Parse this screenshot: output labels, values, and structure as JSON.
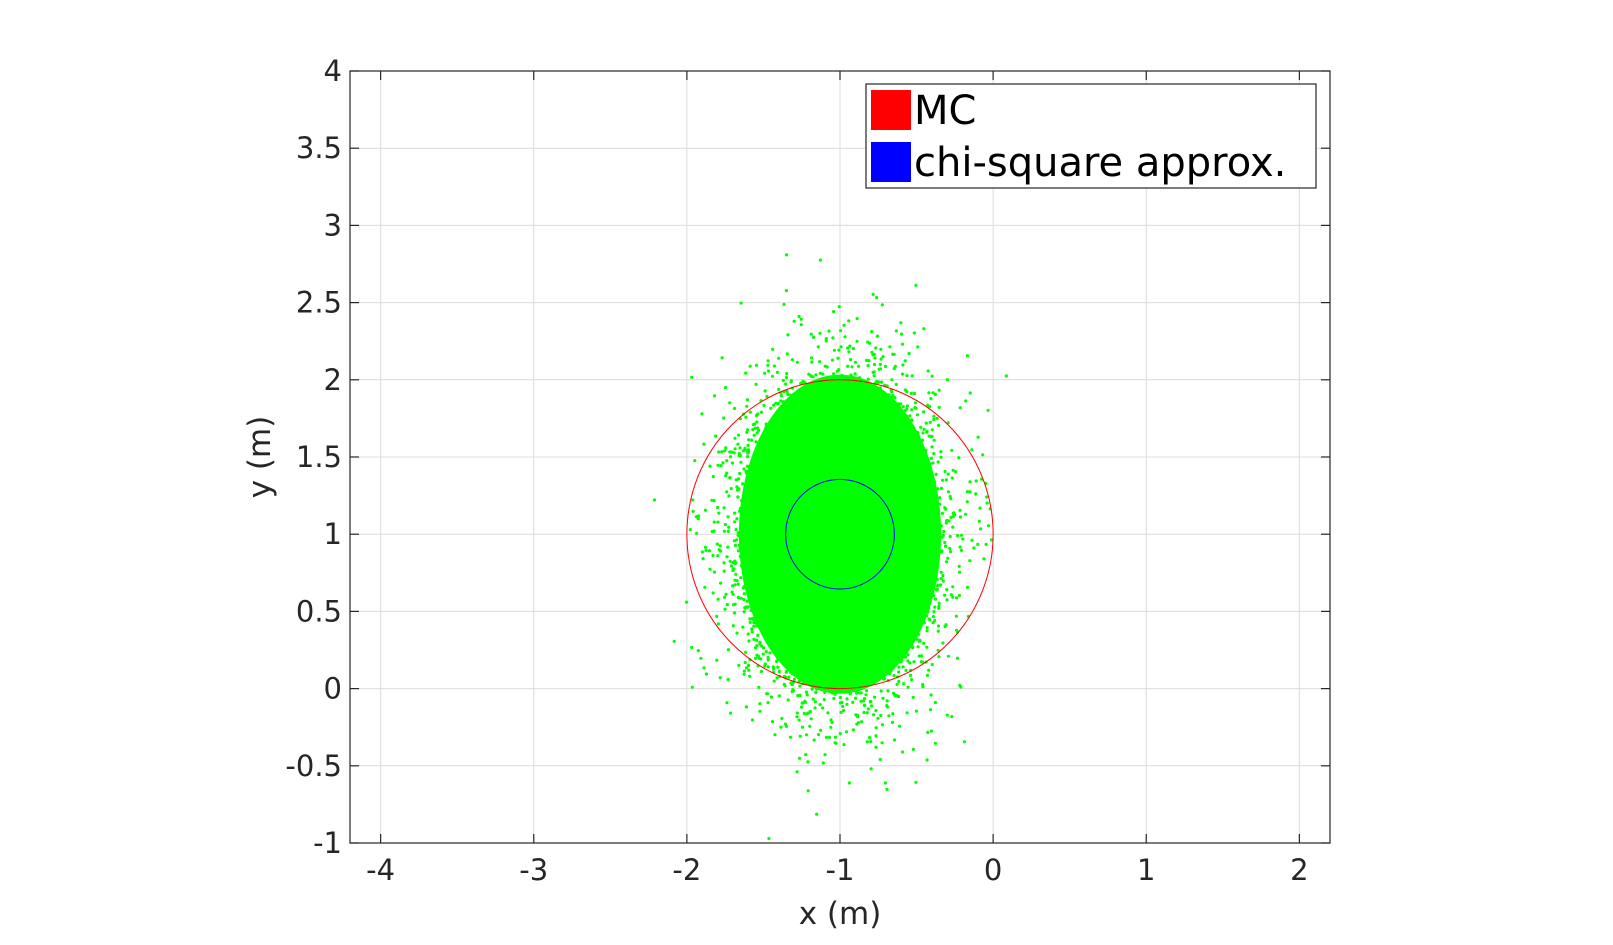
{
  "chart_data": {
    "type": "scatter",
    "title": "",
    "xlabel": "x (m)",
    "ylabel": "y (m)",
    "xlim": [
      -4.2,
      2.2
    ],
    "ylim": [
      -1,
      4
    ],
    "xticks": [
      -4,
      -3,
      -2,
      -1,
      0,
      1,
      2
    ],
    "yticks": [
      -1,
      -0.5,
      0,
      0.5,
      1,
      1.5,
      2,
      2.5,
      3,
      3.5,
      4
    ],
    "grid": true,
    "legend_position": "top-right",
    "legend": [
      {
        "label": "MC",
        "color": "#ff0000"
      },
      {
        "label": "chi-square approx.",
        "color": "#0000ff"
      }
    ],
    "point_cloud": {
      "color": "#00ff00",
      "center": [
        -1,
        1
      ],
      "std_x": 0.3,
      "std_y": 0.47,
      "count": 9000
    },
    "circles": [
      {
        "series": "MC",
        "center": [
          -1,
          1
        ],
        "radius": 1.0,
        "color": "#ff0000"
      },
      {
        "series": "chi-square approx.",
        "center": [
          -1,
          1
        ],
        "radius": 0.355,
        "color": "#0000ff"
      }
    ]
  }
}
